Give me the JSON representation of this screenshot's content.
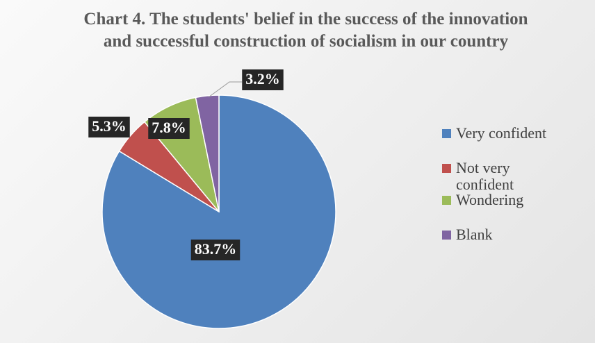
{
  "chart_data": {
    "type": "pie",
    "title": "Chart 4. The students' belief in the success of the innovation and successful construction of socialism in our country",
    "categories": [
      "Very confident",
      "Not very confident",
      "Wondering",
      "Blank"
    ],
    "values": [
      83.7,
      5.3,
      7.8,
      3.2
    ],
    "value_labels": [
      "83.7%",
      "5.3%",
      "7.8%",
      "3.2%"
    ],
    "colors": [
      "#4f81bd",
      "#c0504d",
      "#9bbb59",
      "#8064a2"
    ],
    "legend": "right"
  }
}
